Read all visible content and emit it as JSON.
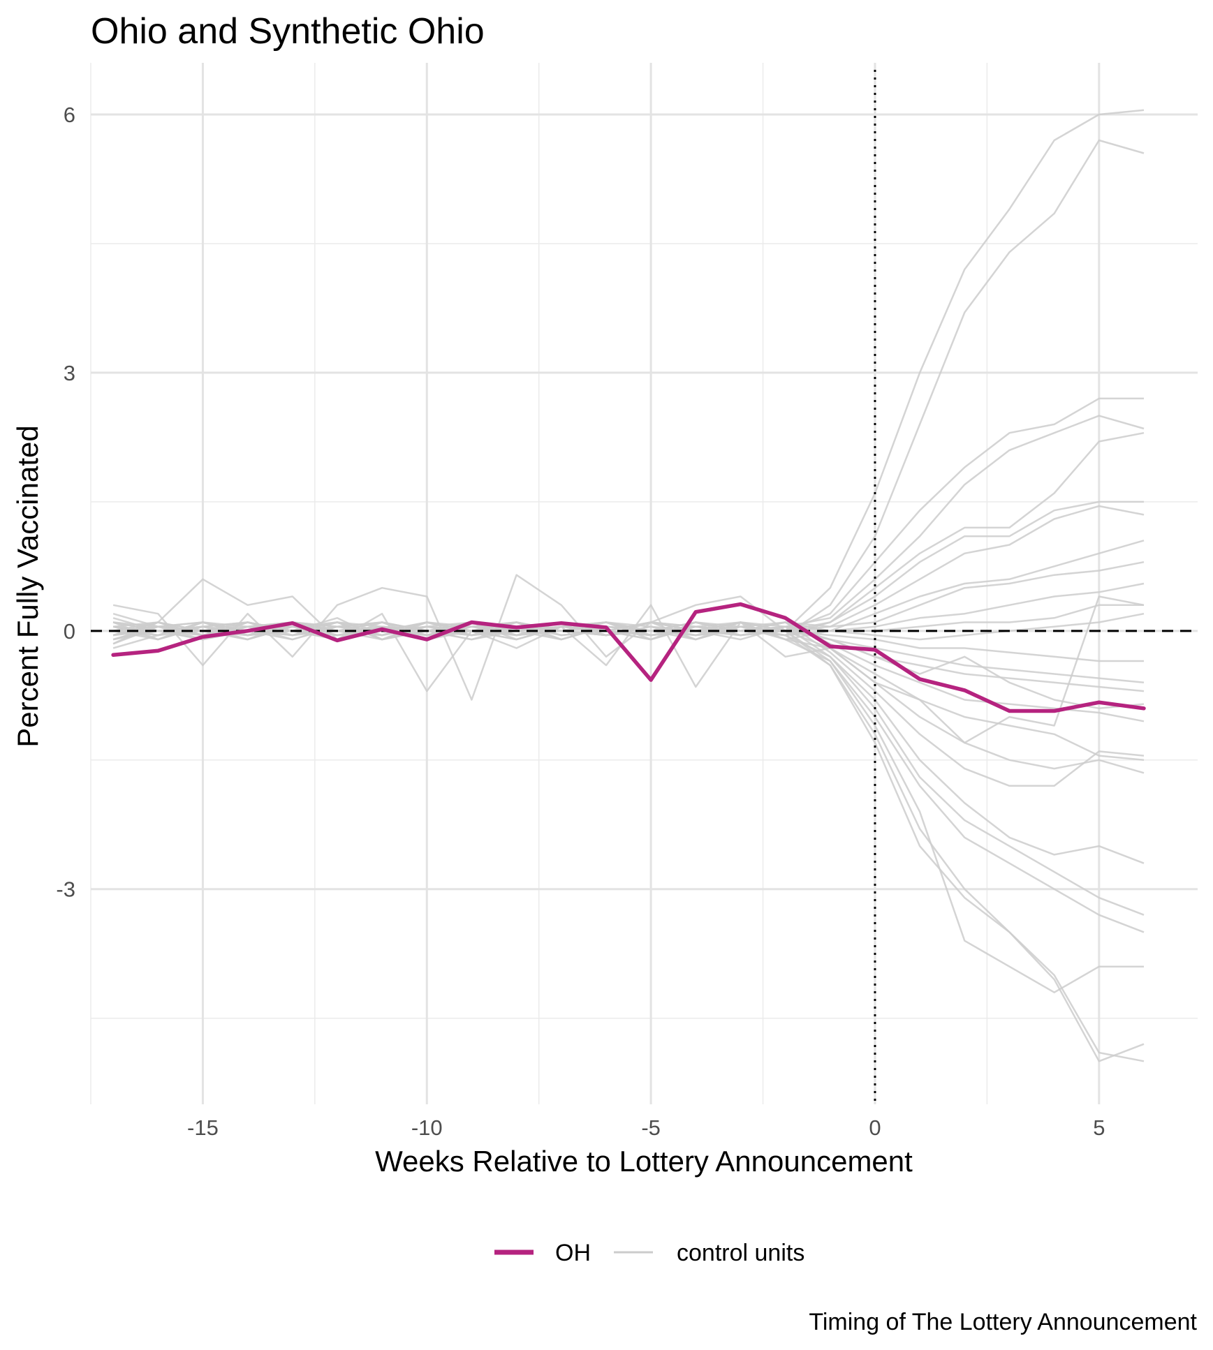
{
  "chart_data": {
    "type": "line",
    "title": "Ohio and Synthetic Ohio",
    "xlabel": "Weeks Relative to Lottery Announcement",
    "ylabel": "Percent Fully Vaccinated",
    "caption": "Timing of The Lottery Announcement",
    "xlim": [
      -17.5,
      7.2
    ],
    "ylim": [
      -5.5,
      6.6
    ],
    "x_ticks": [
      -15,
      -10,
      -5,
      0,
      5
    ],
    "x_tick_labels": [
      "-15",
      "-10",
      "-5",
      "0",
      "5"
    ],
    "y_ticks": [
      -3,
      0,
      3,
      6
    ],
    "y_tick_labels": [
      "-3",
      "0",
      "3",
      "6"
    ],
    "grid": true,
    "reference_lines": [
      {
        "axis": "y",
        "value": 0,
        "style": "dashed",
        "color": "#000000"
      },
      {
        "axis": "x",
        "value": 0,
        "style": "dotted",
        "color": "#000000"
      }
    ],
    "legend": {
      "position": "bottom",
      "entries": [
        {
          "label": "OH",
          "color": "#b5237f"
        },
        {
          "label": "control units",
          "color": "#cccccc"
        }
      ]
    },
    "x": [
      -17,
      -16,
      -15,
      -14,
      -13,
      -12,
      -11,
      -10,
      -9,
      -8,
      -7,
      -6,
      -5,
      -4,
      -3,
      -2,
      -1,
      0,
      1,
      2,
      3,
      4,
      5,
      6
    ],
    "series": [
      {
        "name": "OH",
        "color": "#b5237f",
        "emphasis": true,
        "values": [
          -0.28,
          -0.23,
          -0.07,
          0.0,
          0.09,
          -0.11,
          0.02,
          -0.1,
          0.1,
          0.04,
          0.09,
          0.04,
          -0.57,
          0.22,
          0.31,
          0.15,
          -0.18,
          -0.22,
          -0.56,
          -0.69,
          -0.93,
          -0.93,
          -0.83,
          -0.9
        ]
      },
      {
        "name": "control units",
        "color": "#cccccc",
        "values": [
          0.05,
          -0.1,
          0.1,
          -0.05,
          0.0,
          0.15,
          -0.1,
          0.05,
          0.0,
          0.1,
          -0.05,
          0.0,
          0.1,
          -0.1,
          0.05,
          0.0,
          0.5,
          1.6,
          3.0,
          4.2,
          4.9,
          5.7,
          6.0,
          6.05
        ]
      },
      {
        "name": "control units",
        "color": "#cccccc",
        "values": [
          -0.1,
          0.05,
          -0.05,
          0.1,
          0.0,
          -0.1,
          0.05,
          0.0,
          0.1,
          -0.05,
          0.05,
          0.0,
          -0.1,
          0.1,
          0.0,
          -0.05,
          0.3,
          1.1,
          2.4,
          3.7,
          4.4,
          4.85,
          5.7,
          5.55
        ]
      },
      {
        "name": "control units",
        "color": "#cccccc",
        "values": [
          0.1,
          0.0,
          0.05,
          -0.1,
          0.05,
          0.0,
          0.1,
          -0.05,
          0.0,
          0.05,
          0.0,
          0.1,
          -0.05,
          0.0,
          0.1,
          0.0,
          0.2,
          0.8,
          1.4,
          1.9,
          2.3,
          2.4,
          2.7,
          2.7
        ]
      },
      {
        "name": "control units",
        "color": "#cccccc",
        "values": [
          -0.05,
          0.1,
          0.0,
          0.05,
          -0.1,
          0.05,
          0.0,
          0.1,
          -0.05,
          0.0,
          0.1,
          -0.05,
          0.05,
          0.0,
          -0.1,
          0.05,
          0.15,
          0.6,
          1.1,
          1.7,
          2.1,
          2.3,
          2.5,
          2.35
        ]
      },
      {
        "name": "control units",
        "color": "#cccccc",
        "values": [
          0.0,
          -0.05,
          0.1,
          0.0,
          -0.05,
          0.1,
          -0.1,
          0.0,
          0.05,
          0.1,
          -0.1,
          0.05,
          0.0,
          0.1,
          0.0,
          -0.05,
          0.1,
          0.5,
          0.9,
          1.2,
          1.2,
          1.6,
          2.2,
          2.3
        ]
      },
      {
        "name": "control units",
        "color": "#cccccc",
        "values": [
          0.15,
          0.0,
          -0.1,
          0.1,
          0.0,
          0.05,
          -0.05,
          0.1,
          0.0,
          -0.1,
          0.05,
          0.1,
          0.0,
          -0.05,
          0.1,
          0.0,
          0.1,
          0.4,
          0.8,
          1.1,
          1.1,
          1.4,
          1.5,
          1.5
        ]
      },
      {
        "name": "control units",
        "color": "#cccccc",
        "values": [
          -0.15,
          0.05,
          0.0,
          -0.05,
          0.1,
          0.0,
          0.05,
          0.0,
          -0.1,
          0.05,
          0.0,
          -0.05,
          0.1,
          0.05,
          0.0,
          0.1,
          0.05,
          0.3,
          0.6,
          0.9,
          1.0,
          1.3,
          1.45,
          1.35
        ]
      },
      {
        "name": "control units",
        "color": "#cccccc",
        "values": [
          0.05,
          0.1,
          -0.05,
          0.0,
          0.05,
          -0.1,
          0.1,
          0.0,
          0.05,
          -0.05,
          0.1,
          0.0,
          -0.1,
          0.05,
          0.0,
          -0.05,
          0.0,
          0.2,
          0.4,
          0.55,
          0.6,
          0.75,
          0.9,
          1.05
        ]
      },
      {
        "name": "control units",
        "color": "#cccccc",
        "values": [
          0.0,
          0.05,
          0.1,
          -0.05,
          0.0,
          0.1,
          0.0,
          -0.05,
          0.05,
          0.0,
          0.05,
          0.1,
          -0.05,
          0.0,
          0.05,
          0.0,
          0.05,
          0.1,
          0.3,
          0.5,
          0.55,
          0.65,
          0.7,
          0.8
        ]
      },
      {
        "name": "control units",
        "color": "#cccccc",
        "values": [
          -0.05,
          0.0,
          -0.1,
          0.05,
          0.1,
          0.0,
          -0.05,
          0.05,
          0.0,
          0.1,
          0.0,
          -0.05,
          0.05,
          -0.1,
          0.05,
          0.1,
          0.0,
          0.05,
          0.15,
          0.2,
          0.3,
          0.4,
          0.45,
          0.55
        ]
      },
      {
        "name": "control units",
        "color": "#cccccc",
        "values": [
          0.1,
          -0.1,
          0.05,
          0.0,
          -0.05,
          0.05,
          0.1,
          0.0,
          -0.1,
          0.0,
          0.05,
          0.0,
          0.1,
          0.0,
          -0.05,
          0.05,
          0.0,
          0.0,
          0.05,
          0.1,
          0.1,
          0.15,
          0.3,
          0.3
        ]
      },
      {
        "name": "control units",
        "color": "#cccccc",
        "values": [
          -0.1,
          0.0,
          0.05,
          0.1,
          0.0,
          -0.05,
          0.0,
          0.1,
          0.05,
          -0.05,
          0.0,
          0.1,
          0.0,
          0.05,
          0.1,
          -0.1,
          0.0,
          -0.05,
          -0.1,
          -0.05,
          0.0,
          0.05,
          0.1,
          0.2
        ]
      },
      {
        "name": "control units",
        "color": "#cccccc",
        "values": [
          0.2,
          0.05,
          0.0,
          -0.1,
          0.1,
          0.05,
          0.0,
          -0.05,
          0.1,
          0.0,
          -0.1,
          0.05,
          0.0,
          0.1,
          -0.05,
          0.0,
          -0.05,
          -0.1,
          -0.2,
          -0.2,
          -0.25,
          -0.3,
          -0.35,
          -0.35
        ]
      },
      {
        "name": "control units",
        "color": "#cccccc",
        "values": [
          0.0,
          0.1,
          -0.05,
          0.0,
          0.05,
          0.1,
          -0.1,
          0.0,
          0.05,
          0.1,
          0.0,
          -0.05,
          0.0,
          -0.05,
          0.0,
          0.05,
          -0.1,
          -0.2,
          -0.3,
          -0.4,
          -0.45,
          -0.5,
          -0.55,
          -0.6
        ]
      },
      {
        "name": "control units",
        "color": "#cccccc",
        "values": [
          -0.2,
          -0.05,
          0.1,
          0.05,
          0.0,
          -0.1,
          0.05,
          0.0,
          -0.05,
          0.05,
          0.1,
          0.0,
          -0.05,
          0.0,
          0.1,
          0.05,
          -0.1,
          -0.3,
          -0.4,
          -0.5,
          -0.55,
          -0.6,
          -0.65,
          -0.7
        ]
      },
      {
        "name": "control units",
        "color": "#cccccc",
        "values": [
          0.05,
          -0.05,
          0.0,
          0.1,
          -0.05,
          0.0,
          0.1,
          -0.1,
          0.0,
          0.05,
          0.0,
          0.1,
          0.05,
          -0.05,
          0.0,
          0.1,
          -0.15,
          -0.4,
          -0.6,
          -0.8,
          -0.85,
          -0.9,
          -0.95,
          -1.05
        ]
      },
      {
        "name": "control units",
        "color": "#cccccc",
        "values": [
          0.0,
          0.05,
          -0.1,
          0.0,
          0.1,
          -0.05,
          0.0,
          0.05,
          0.1,
          -0.1,
          0.05,
          0.0,
          0.1,
          0.0,
          -0.05,
          0.0,
          -0.2,
          -0.5,
          -0.8,
          -1.0,
          -1.1,
          -1.2,
          -1.45,
          -1.5
        ]
      },
      {
        "name": "control units",
        "color": "#cccccc",
        "values": [
          0.1,
          0.0,
          0.05,
          -0.05,
          0.0,
          0.1,
          0.05,
          -0.05,
          0.0,
          0.05,
          -0.1,
          0.05,
          0.0,
          0.1,
          0.05,
          -0.1,
          -0.2,
          -0.6,
          -1.0,
          -1.3,
          -1.5,
          -1.6,
          -1.5,
          -1.65
        ]
      },
      {
        "name": "control units",
        "color": "#cccccc",
        "values": [
          -0.05,
          0.1,
          0.0,
          -0.1,
          0.05,
          0.0,
          -0.05,
          0.1,
          0.0,
          -0.05,
          0.1,
          0.0,
          -0.05,
          0.05,
          0.0,
          0.1,
          -0.25,
          -0.7,
          -1.2,
          -1.6,
          -1.8,
          -1.8,
          -1.4,
          -1.45
        ]
      },
      {
        "name": "control units",
        "color": "#cccccc",
        "values": [
          0.05,
          0.0,
          -0.05,
          0.05,
          0.1,
          -0.1,
          0.0,
          0.05,
          -0.05,
          0.1,
          0.0,
          -0.05,
          0.1,
          0.0,
          0.05,
          -0.05,
          -0.3,
          -0.8,
          -1.5,
          -2.0,
          -2.4,
          -2.6,
          -2.5,
          -2.7
        ]
      },
      {
        "name": "control units",
        "color": "#cccccc",
        "values": [
          -0.1,
          0.05,
          0.1,
          0.0,
          -0.1,
          0.05,
          0.1,
          0.0,
          -0.05,
          0.0,
          0.05,
          0.1,
          -0.1,
          0.05,
          0.0,
          0.05,
          -0.3,
          -0.9,
          -1.7,
          -2.2,
          -2.5,
          -2.8,
          -3.1,
          -3.3
        ]
      },
      {
        "name": "control units",
        "color": "#cccccc",
        "values": [
          0.0,
          -0.1,
          0.05,
          0.1,
          0.0,
          -0.05,
          0.05,
          0.0,
          0.1,
          -0.05,
          0.0,
          0.05,
          0.0,
          -0.1,
          0.1,
          0.0,
          -0.35,
          -1.0,
          -1.8,
          -2.4,
          -2.7,
          -3.0,
          -3.3,
          -3.5
        ]
      },
      {
        "name": "control units",
        "color": "#cccccc",
        "values": [
          0.05,
          0.0,
          -0.1,
          0.05,
          0.05,
          0.0,
          -0.1,
          0.1,
          0.0,
          0.05,
          -0.05,
          0.0,
          0.1,
          0.05,
          -0.05,
          0.0,
          -0.4,
          -1.2,
          -2.3,
          -3.0,
          -3.5,
          -4.0,
          -4.9,
          -5.0
        ]
      },
      {
        "name": "control units",
        "color": "#cccccc",
        "values": [
          -0.05,
          0.05,
          0.0,
          -0.05,
          0.1,
          0.05,
          0.0,
          -0.1,
          0.05,
          0.0,
          0.1,
          -0.05,
          0.0,
          0.1,
          0.0,
          -0.05,
          -0.4,
          -1.3,
          -2.5,
          -3.1,
          -3.5,
          -4.05,
          -5.0,
          -4.8
        ]
      },
      {
        "name": "control units",
        "color": "#cccccc",
        "values": [
          0.1,
          0.05,
          -0.05,
          0.0,
          0.0,
          0.1,
          -0.05,
          0.05,
          0.0,
          -0.1,
          0.05,
          0.0,
          -0.05,
          0.0,
          0.1,
          -0.1,
          -0.35,
          -1.1,
          -2.1,
          -3.6,
          -3.9,
          -4.2,
          -3.9,
          -3.9
        ]
      },
      {
        "name": "control units",
        "color": "#cccccc",
        "values": [
          -0.15,
          0.1,
          0.6,
          0.3,
          0.4,
          -0.1,
          0.2,
          -0.7,
          0.0,
          -0.2,
          0.05,
          -0.4,
          0.3,
          -0.65,
          0.1,
          -0.3,
          -0.2,
          -0.6,
          -0.8,
          -1.3,
          -1.0,
          -1.1,
          0.4,
          0.3
        ]
      },
      {
        "name": "control units",
        "color": "#cccccc",
        "values": [
          0.3,
          0.2,
          -0.4,
          0.2,
          -0.3,
          0.3,
          0.5,
          0.4,
          -0.8,
          0.65,
          0.3,
          -0.3,
          0.1,
          0.3,
          0.4,
          0.0,
          -0.1,
          -0.3,
          -0.5,
          -0.3,
          -0.6,
          -0.8,
          -0.9,
          -0.85
        ]
      }
    ]
  }
}
